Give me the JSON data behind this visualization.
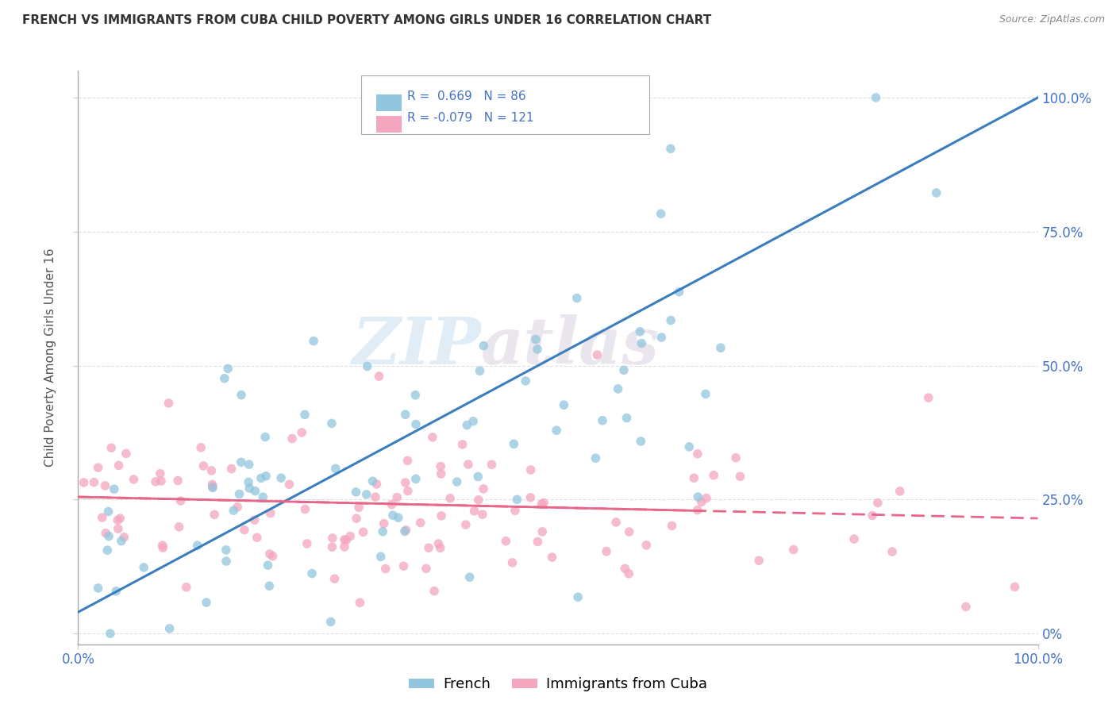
{
  "title": "FRENCH VS IMMIGRANTS FROM CUBA CHILD POVERTY AMONG GIRLS UNDER 16 CORRELATION CHART",
  "source": "Source: ZipAtlas.com",
  "ylabel": "Child Poverty Among Girls Under 16",
  "watermark_zip": "ZIP",
  "watermark_atlas": "atlas",
  "french_R": 0.669,
  "french_N": 86,
  "cuba_R": -0.079,
  "cuba_N": 121,
  "french_color": "#92c5de",
  "cuba_color": "#f4a6be",
  "french_line_color": "#3a7ebf",
  "cuba_line_color": "#e8668a",
  "title_color": "#333333",
  "axis_label_color": "#555555",
  "tick_color": "#4472c4",
  "background_color": "#ffffff",
  "grid_color": "#e0e0e0",
  "xlim": [
    0.0,
    1.0
  ],
  "ylim": [
    -0.02,
    1.05
  ],
  "yticks": [
    0.0,
    0.25,
    0.5,
    0.75,
    1.0
  ],
  "yticklabels_right": [
    "0%",
    "25.0%",
    "50.0%",
    "75.0%",
    "100.0%"
  ],
  "xticks": [
    0.0,
    1.0
  ],
  "xticklabels": [
    "0.0%",
    "100.0%"
  ],
  "french_line_y0": 0.04,
  "french_line_y1": 1.0,
  "cuba_line_y0": 0.255,
  "cuba_line_y1": 0.215
}
